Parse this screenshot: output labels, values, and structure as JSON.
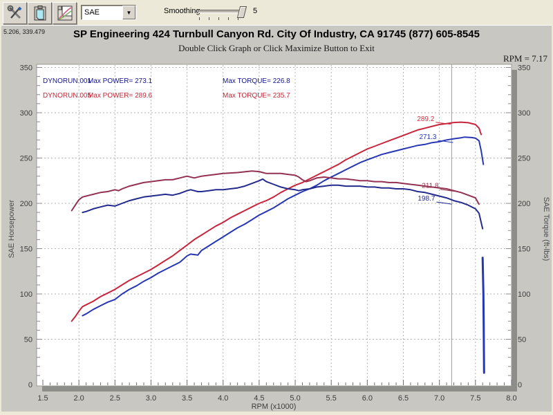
{
  "toolbar": {
    "icons": [
      {
        "name": "tools-icon"
      },
      {
        "name": "clipboard-icon"
      },
      {
        "name": "graph-icon"
      }
    ],
    "mode_select": {
      "value": "SAE"
    },
    "smoothing_label": "Smoothing",
    "smoothing_value": "5"
  },
  "header": {
    "coords": "5.206, 339.479",
    "title": "SP Engineering 424 Turnbull Canyon Rd. City Of Industry, CA 91745 (877) 605-8545",
    "subtitle": "Double Click Graph or Click Maximize Button to Exit",
    "rpm_readout": "RPM = 7.17"
  },
  "chart_data": {
    "type": "line",
    "xlabel": "RPM (x1000)",
    "ylabel_left": "SAE Horsepower",
    "ylabel_right": "SAE Torque (ft-lbs)",
    "xlim": [
      1.5,
      8.0
    ],
    "ylim": [
      0,
      350
    ],
    "grid": true,
    "cursor_rpm": 7.17,
    "x_ticks": [
      "1.5",
      "2.0",
      "2.5",
      "3.0",
      "3.5",
      "4.0",
      "4.5",
      "5.0",
      "5.5",
      "6.0",
      "6.5",
      "7.0",
      "7.5",
      "8.0"
    ],
    "y_ticks": [
      "0",
      "50",
      "100",
      "150",
      "200",
      "250",
      "300",
      "350"
    ],
    "legend": [
      {
        "run_label": "DYNORUN.001",
        "power_label": "Max POWER= 273.1",
        "torque_label": "Max TORQUE= 226.8",
        "color": "#16168c"
      },
      {
        "run_label": "DYNORUN.005",
        "power_label": "Max POWER= 289.6",
        "torque_label": "Max TORQUE= 235.7",
        "color": "#c02838"
      }
    ],
    "cursor_labels": [
      {
        "text": "289.2",
        "color": "#d03040",
        "anchor_rpm": 6.93,
        "anchor_value": 291
      },
      {
        "text": "271.3",
        "color": "#2636b4",
        "anchor_rpm": 6.96,
        "anchor_value": 271
      },
      {
        "text": "211.8",
        "color": "#943050",
        "anchor_rpm": 6.99,
        "anchor_value": 217
      },
      {
        "text": "198.7",
        "color": "#232a8e",
        "anchor_rpm": 6.94,
        "anchor_value": 203
      }
    ],
    "series": [
      {
        "name": "dynorun-005-power",
        "color": "#c8243c",
        "width": 2,
        "points": [
          [
            1.9,
            70
          ],
          [
            1.95,
            75
          ],
          [
            2.0,
            81
          ],
          [
            2.05,
            86
          ],
          [
            2.1,
            88
          ],
          [
            2.2,
            92
          ],
          [
            2.3,
            97
          ],
          [
            2.4,
            101
          ],
          [
            2.5,
            105
          ],
          [
            2.6,
            110
          ],
          [
            2.7,
            115
          ],
          [
            2.8,
            119
          ],
          [
            2.9,
            123
          ],
          [
            3.0,
            127
          ],
          [
            3.1,
            132
          ],
          [
            3.2,
            137
          ],
          [
            3.3,
            142
          ],
          [
            3.4,
            148
          ],
          [
            3.5,
            154
          ],
          [
            3.6,
            160
          ],
          [
            3.7,
            165
          ],
          [
            3.8,
            170
          ],
          [
            3.9,
            175
          ],
          [
            4.0,
            179
          ],
          [
            4.1,
            184
          ],
          [
            4.2,
            188
          ],
          [
            4.3,
            192
          ],
          [
            4.4,
            196
          ],
          [
            4.5,
            200
          ],
          [
            4.6,
            203
          ],
          [
            4.7,
            207
          ],
          [
            4.8,
            212
          ],
          [
            4.9,
            216
          ],
          [
            5.0,
            220
          ],
          [
            5.1,
            223
          ],
          [
            5.2,
            227
          ],
          [
            5.3,
            231
          ],
          [
            5.4,
            235
          ],
          [
            5.5,
            239
          ],
          [
            5.6,
            243
          ],
          [
            5.7,
            248
          ],
          [
            5.8,
            252
          ],
          [
            5.9,
            256
          ],
          [
            6.0,
            260
          ],
          [
            6.1,
            263
          ],
          [
            6.2,
            266
          ],
          [
            6.3,
            269
          ],
          [
            6.4,
            272
          ],
          [
            6.5,
            275
          ],
          [
            6.6,
            278
          ],
          [
            6.7,
            281
          ],
          [
            6.8,
            283
          ],
          [
            6.9,
            285
          ],
          [
            7.0,
            287
          ],
          [
            7.1,
            288
          ],
          [
            7.2,
            289.2
          ],
          [
            7.3,
            289.6
          ],
          [
            7.4,
            289
          ],
          [
            7.5,
            287
          ],
          [
            7.55,
            283
          ],
          [
            7.58,
            276
          ]
        ]
      },
      {
        "name": "dynorun-001-power",
        "color": "#2636b4",
        "width": 2,
        "points": [
          [
            2.05,
            76
          ],
          [
            2.1,
            78
          ],
          [
            2.2,
            83
          ],
          [
            2.3,
            87
          ],
          [
            2.4,
            91
          ],
          [
            2.5,
            94
          ],
          [
            2.6,
            100
          ],
          [
            2.7,
            105
          ],
          [
            2.8,
            109
          ],
          [
            2.9,
            114
          ],
          [
            3.0,
            118
          ],
          [
            3.1,
            123
          ],
          [
            3.2,
            127
          ],
          [
            3.3,
            131
          ],
          [
            3.4,
            135
          ],
          [
            3.5,
            142
          ],
          [
            3.55,
            144
          ],
          [
            3.65,
            143
          ],
          [
            3.7,
            148
          ],
          [
            3.8,
            153
          ],
          [
            3.9,
            158
          ],
          [
            4.0,
            163
          ],
          [
            4.1,
            168
          ],
          [
            4.2,
            173
          ],
          [
            4.3,
            177
          ],
          [
            4.4,
            182
          ],
          [
            4.5,
            187
          ],
          [
            4.6,
            191
          ],
          [
            4.7,
            195
          ],
          [
            4.8,
            200
          ],
          [
            4.9,
            205
          ],
          [
            5.0,
            209
          ],
          [
            5.1,
            213
          ],
          [
            5.2,
            216
          ],
          [
            5.3,
            220
          ],
          [
            5.4,
            225
          ],
          [
            5.5,
            229
          ],
          [
            5.6,
            233
          ],
          [
            5.7,
            237
          ],
          [
            5.8,
            241
          ],
          [
            5.9,
            245
          ],
          [
            6.0,
            248
          ],
          [
            6.1,
            251
          ],
          [
            6.2,
            254
          ],
          [
            6.3,
            256
          ],
          [
            6.4,
            258
          ],
          [
            6.5,
            260
          ],
          [
            6.6,
            262
          ],
          [
            6.7,
            264
          ],
          [
            6.8,
            265
          ],
          [
            6.9,
            267
          ],
          [
            7.0,
            268
          ],
          [
            7.1,
            270
          ],
          [
            7.2,
            271.3
          ],
          [
            7.3,
            272.4
          ],
          [
            7.35,
            273.1
          ],
          [
            7.45,
            272.6
          ],
          [
            7.5,
            272
          ],
          [
            7.55,
            269
          ],
          [
            7.58,
            258
          ],
          [
            7.61,
            243
          ]
        ]
      },
      {
        "name": "dynorun-005-torque",
        "color": "#943050",
        "width": 2,
        "points": [
          [
            1.9,
            192
          ],
          [
            1.95,
            198
          ],
          [
            2.0,
            204
          ],
          [
            2.05,
            207
          ],
          [
            2.1,
            208
          ],
          [
            2.2,
            210
          ],
          [
            2.3,
            212
          ],
          [
            2.4,
            213
          ],
          [
            2.5,
            215
          ],
          [
            2.55,
            214
          ],
          [
            2.6,
            216
          ],
          [
            2.7,
            219
          ],
          [
            2.8,
            221
          ],
          [
            2.9,
            223
          ],
          [
            3.0,
            224
          ],
          [
            3.1,
            225
          ],
          [
            3.2,
            226
          ],
          [
            3.3,
            226
          ],
          [
            3.4,
            228
          ],
          [
            3.5,
            230
          ],
          [
            3.6,
            228
          ],
          [
            3.7,
            230
          ],
          [
            3.8,
            231
          ],
          [
            3.9,
            232
          ],
          [
            4.0,
            233
          ],
          [
            4.2,
            234
          ],
          [
            4.4,
            235.7
          ],
          [
            4.5,
            235
          ],
          [
            4.6,
            233
          ],
          [
            4.8,
            233
          ],
          [
            4.9,
            232
          ],
          [
            5.0,
            231
          ],
          [
            5.05,
            229
          ],
          [
            5.1,
            226
          ],
          [
            5.15,
            224
          ],
          [
            5.2,
            225
          ],
          [
            5.3,
            228
          ],
          [
            5.4,
            229
          ],
          [
            5.5,
            228
          ],
          [
            5.6,
            227
          ],
          [
            5.7,
            227
          ],
          [
            5.8,
            226
          ],
          [
            5.9,
            225
          ],
          [
            6.0,
            225
          ],
          [
            6.1,
            224
          ],
          [
            6.2,
            224
          ],
          [
            6.3,
            223
          ],
          [
            6.4,
            223
          ],
          [
            6.5,
            222
          ],
          [
            6.6,
            221
          ],
          [
            6.7,
            220
          ],
          [
            6.8,
            219
          ],
          [
            6.9,
            218
          ],
          [
            7.0,
            217
          ],
          [
            7.1,
            216
          ],
          [
            7.2,
            214
          ],
          [
            7.3,
            212
          ],
          [
            7.4,
            209
          ],
          [
            7.5,
            206
          ],
          [
            7.55,
            199
          ]
        ]
      },
      {
        "name": "dynorun-001-torque",
        "color": "#232a8e",
        "width": 2,
        "points": [
          [
            2.05,
            190
          ],
          [
            2.1,
            191
          ],
          [
            2.2,
            194
          ],
          [
            2.3,
            196
          ],
          [
            2.4,
            198
          ],
          [
            2.5,
            197
          ],
          [
            2.6,
            200
          ],
          [
            2.7,
            203
          ],
          [
            2.8,
            205
          ],
          [
            2.9,
            207
          ],
          [
            3.0,
            208
          ],
          [
            3.1,
            209
          ],
          [
            3.2,
            210
          ],
          [
            3.3,
            209
          ],
          [
            3.4,
            211
          ],
          [
            3.5,
            214
          ],
          [
            3.55,
            215
          ],
          [
            3.65,
            213
          ],
          [
            3.7,
            213
          ],
          [
            3.8,
            214
          ],
          [
            3.9,
            215
          ],
          [
            4.0,
            215
          ],
          [
            4.1,
            216
          ],
          [
            4.2,
            217
          ],
          [
            4.3,
            219
          ],
          [
            4.4,
            222
          ],
          [
            4.5,
            225
          ],
          [
            4.55,
            226.8
          ],
          [
            4.6,
            224
          ],
          [
            4.7,
            221
          ],
          [
            4.8,
            218
          ],
          [
            4.9,
            216
          ],
          [
            5.0,
            215
          ],
          [
            5.05,
            214
          ],
          [
            5.1,
            215
          ],
          [
            5.2,
            216
          ],
          [
            5.3,
            218
          ],
          [
            5.4,
            219
          ],
          [
            5.5,
            220
          ],
          [
            5.6,
            220
          ],
          [
            5.7,
            219
          ],
          [
            5.8,
            219
          ],
          [
            5.9,
            219
          ],
          [
            6.0,
            218
          ],
          [
            6.1,
            218
          ],
          [
            6.2,
            217
          ],
          [
            6.3,
            217
          ],
          [
            6.4,
            216
          ],
          [
            6.5,
            216
          ],
          [
            6.6,
            215
          ],
          [
            6.7,
            213
          ],
          [
            6.8,
            212
          ],
          [
            6.9,
            210
          ],
          [
            7.0,
            208
          ],
          [
            7.1,
            206
          ],
          [
            7.2,
            203
          ],
          [
            7.3,
            201
          ],
          [
            7.4,
            198
          ],
          [
            7.5,
            194
          ],
          [
            7.55,
            189
          ],
          [
            7.6,
            172
          ]
        ]
      },
      {
        "name": "dynorun-001-power-tail",
        "color": "#2636b4",
        "width": 3,
        "points": [
          [
            7.6,
            140
          ],
          [
            7.61,
            100
          ],
          [
            7.615,
            60
          ],
          [
            7.62,
            13
          ]
        ]
      }
    ]
  }
}
